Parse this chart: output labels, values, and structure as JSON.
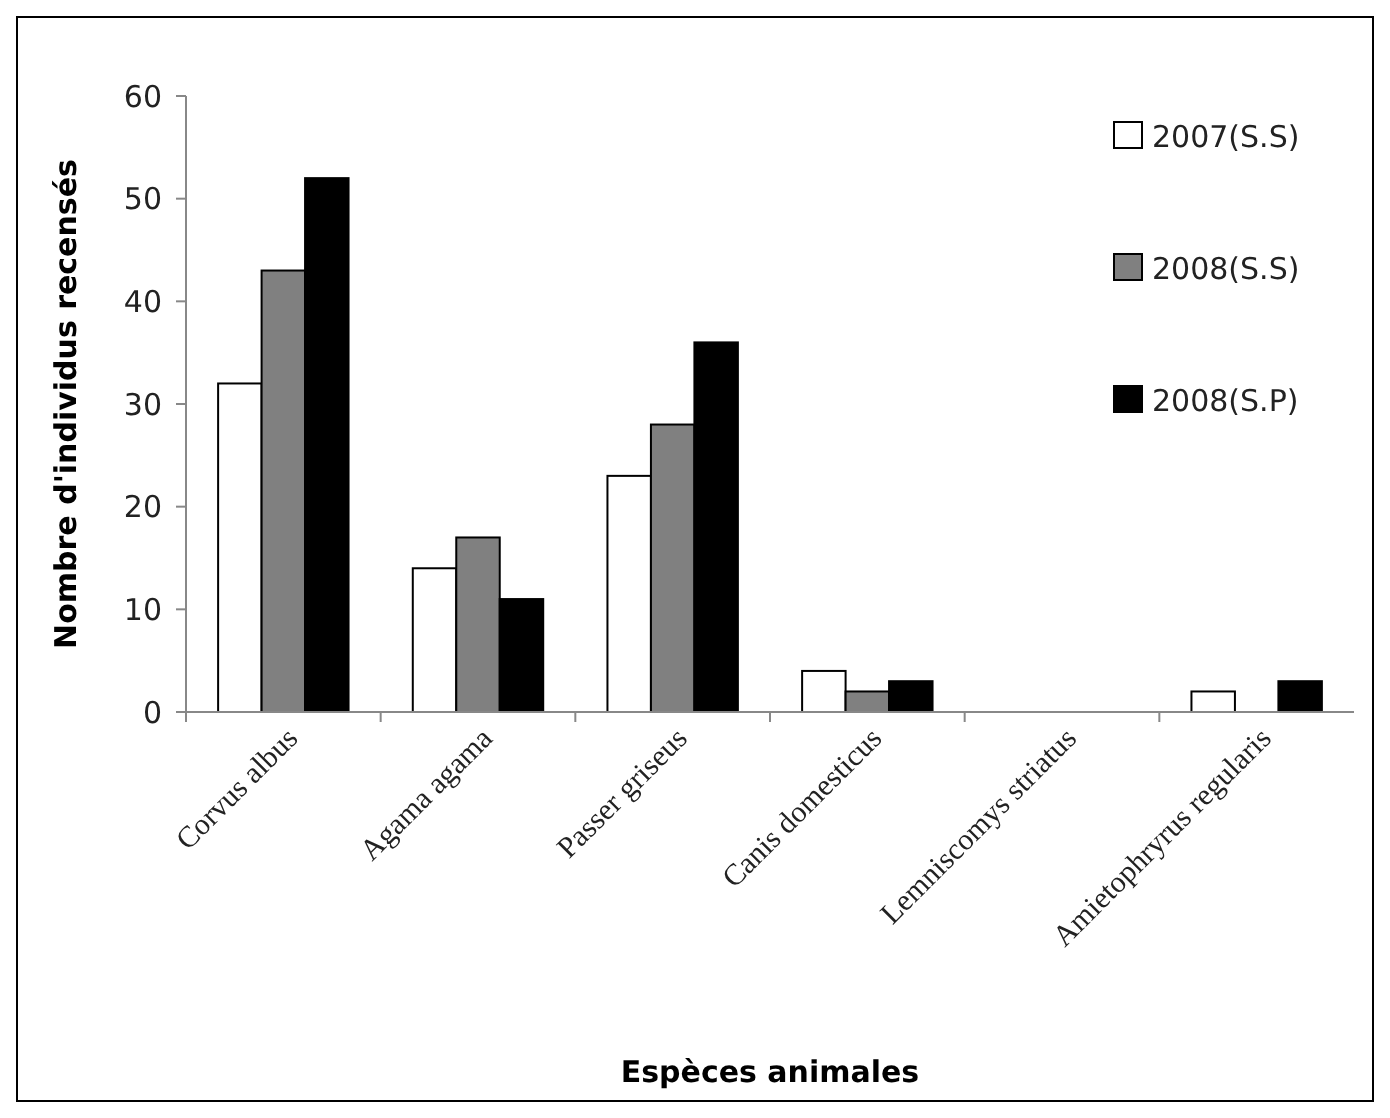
{
  "chart_data": {
    "type": "bar",
    "xlabel": "Espèces animales",
    "ylabel": "Nombre d'individus recensés",
    "categories": [
      "Corvus albus",
      "Agama agama",
      "Passer griseus",
      "Canis domesticus",
      "Lemniscomys striatus",
      "Amietophryrus regularis"
    ],
    "series": [
      {
        "name": "2007(S.S)",
        "color": "#ffffff",
        "values": [
          32,
          14,
          23,
          4,
          0,
          2
        ]
      },
      {
        "name": "2008(S.S)",
        "color": "#808080",
        "values": [
          43,
          17,
          28,
          2,
          0,
          0
        ]
      },
      {
        "name": "2008(S.P)",
        "color": "#000000",
        "values": [
          52,
          11,
          36,
          3,
          0,
          3
        ]
      }
    ],
    "ylim": [
      0,
      60
    ],
    "yticks": [
      0,
      10,
      20,
      30,
      40,
      50,
      60
    ],
    "grid": false,
    "legend": "top right"
  }
}
